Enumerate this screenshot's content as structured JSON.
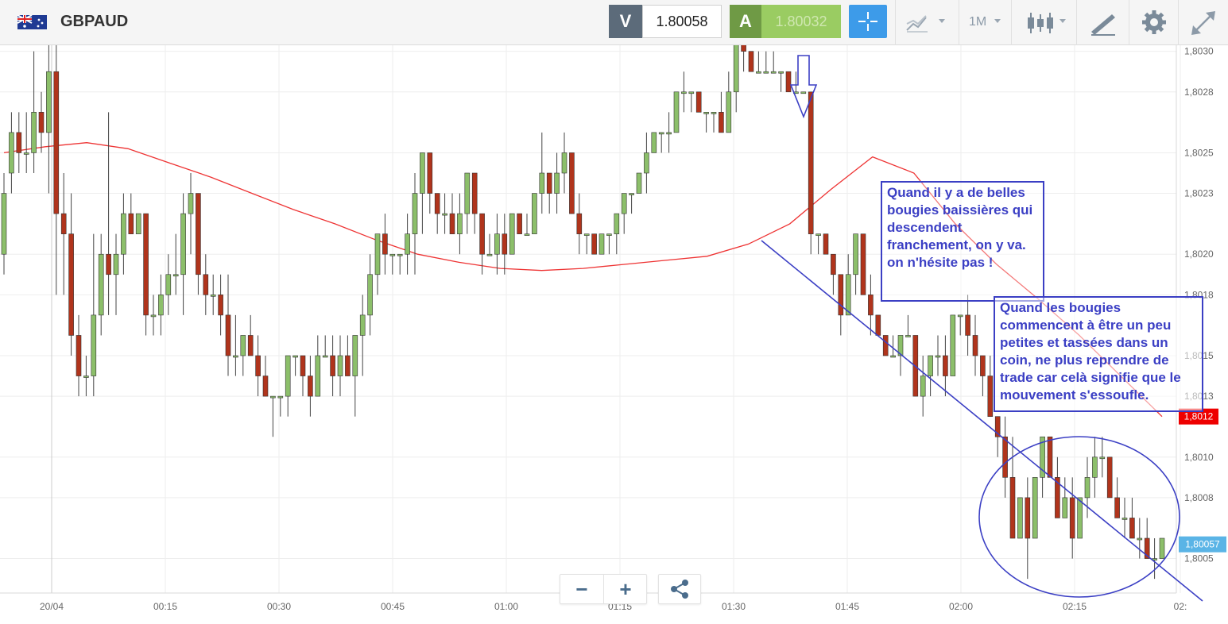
{
  "toolbar": {
    "symbol": "GBPAUD",
    "sell_label": "V",
    "sell_price": "1.80058",
    "buy_label": "A",
    "buy_price": "1.80032",
    "timeframe": "1M",
    "icons": [
      "uk-australia-flag-icon",
      "crosshair-icon",
      "chart-type-icon",
      "candles-icon",
      "draw-tool-icon",
      "gear-icon",
      "fullscreen-icon"
    ]
  },
  "annotations": {
    "box1": "Quand il y a de belles bougies baissières qui descendent franchement, on y va. on n'hésite pas !",
    "box2": "Quand les bougies commencent à être un peu petites et tassées dans un coin, ne plus reprendre de trade car celà signifie que le mouvement s'essoufle."
  },
  "zoom": {
    "minus": "−",
    "plus": "+"
  },
  "colors": {
    "up": "#8cbf6a",
    "down": "#b0341c",
    "ma": "#ee3333",
    "annotation": "#3b3fc4",
    "current_price": "#5ab4e6",
    "ma_price": "#ee0000"
  },
  "chart_data": {
    "type": "candlestick",
    "symbol": "GBPAUD",
    "y_ticks": [
      "1,8030",
      "1,8028",
      "1,8025",
      "1,8023",
      "1,8020",
      "1,8018",
      "1,8015",
      "1,8013",
      "1,8010",
      "1,8008",
      "1,8005"
    ],
    "x_ticks": [
      "20/04",
      "00:15",
      "00:30",
      "00:45",
      "01:00",
      "01:15",
      "01:30",
      "01:45",
      "02:00",
      "02:15",
      "02:"
    ],
    "ylim": [
      1.80033,
      1.80303
    ],
    "current_price_label": "1,80057",
    "ma_price_label": "1,8012",
    "ohlc": [
      [
        1.802,
        1.8024,
        1.8019,
        1.8023
      ],
      [
        1.8024,
        1.8027,
        1.8023,
        1.8026
      ],
      [
        1.8026,
        1.8027,
        1.8024,
        1.8025
      ],
      [
        1.8025,
        1.8027,
        1.8024,
        1.8025
      ],
      [
        1.8025,
        1.803,
        1.8024,
        1.8027
      ],
      [
        1.8027,
        1.8028,
        1.8025,
        1.8026
      ],
      [
        1.8026,
        1.8031,
        1.8023,
        1.8029
      ],
      [
        1.8029,
        1.8034,
        1.8018,
        1.8022
      ],
      [
        1.8022,
        1.8024,
        1.8018,
        1.8021
      ],
      [
        1.8021,
        1.8023,
        1.8015,
        1.8016
      ],
      [
        1.8016,
        1.8017,
        1.8013,
        1.8014
      ],
      [
        1.8014,
        1.8015,
        1.8013,
        1.8014
      ],
      [
        1.8014,
        1.8021,
        1.8013,
        1.8017
      ],
      [
        1.8017,
        1.8021,
        1.8016,
        1.802
      ],
      [
        1.802,
        1.8027,
        1.8017,
        1.8019
      ],
      [
        1.8019,
        1.8021,
        1.8017,
        1.802
      ],
      [
        1.802,
        1.8023,
        1.8019,
        1.8022
      ],
      [
        1.8022,
        1.8023,
        1.8021,
        1.8021
      ],
      [
        1.8021,
        1.8022,
        1.8021,
        1.8022
      ],
      [
        1.8022,
        1.8022,
        1.8016,
        1.8017
      ],
      [
        1.8017,
        1.8018,
        1.8016,
        1.8017
      ],
      [
        1.8017,
        1.8019,
        1.8016,
        1.8018
      ],
      [
        1.8018,
        1.802,
        1.8017,
        1.8019
      ],
      [
        1.8019,
        1.8021,
        1.8018,
        1.8019
      ],
      [
        1.8019,
        1.8023,
        1.8017,
        1.8022
      ],
      [
        1.8022,
        1.8024,
        1.802,
        1.8023
      ],
      [
        1.8023,
        1.8023,
        1.8018,
        1.8019
      ],
      [
        1.8019,
        1.802,
        1.8017,
        1.8018
      ],
      [
        1.8018,
        1.8019,
        1.8017,
        1.8018
      ],
      [
        1.8018,
        1.8019,
        1.8016,
        1.8017
      ],
      [
        1.8017,
        1.8019,
        1.8014,
        1.8015
      ],
      [
        1.8015,
        1.8017,
        1.8014,
        1.8015
      ],
      [
        1.8015,
        1.8016,
        1.8014,
        1.8016
      ],
      [
        1.8016,
        1.8017,
        1.8015,
        1.8015
      ],
      [
        1.8015,
        1.8016,
        1.8013,
        1.8014
      ],
      [
        1.8014,
        1.8015,
        1.8013,
        1.8013
      ],
      [
        1.8013,
        1.8013,
        1.8011,
        1.8013
      ],
      [
        1.8013,
        1.8013,
        1.8012,
        1.8013
      ],
      [
        1.8013,
        1.8015,
        1.8012,
        1.8015
      ],
      [
        1.8015,
        1.8015,
        1.8014,
        1.8015
      ],
      [
        1.8015,
        1.8015,
        1.8013,
        1.8014
      ],
      [
        1.8014,
        1.8015,
        1.8012,
        1.8013
      ],
      [
        1.8013,
        1.8016,
        1.8013,
        1.8015
      ],
      [
        1.8015,
        1.8016,
        1.8015,
        1.8015
      ],
      [
        1.8015,
        1.8016,
        1.8013,
        1.8014
      ],
      [
        1.8014,
        1.8016,
        1.8013,
        1.8015
      ],
      [
        1.8015,
        1.8016,
        1.8014,
        1.8014
      ],
      [
        1.8014,
        1.8016,
        1.8012,
        1.8016
      ],
      [
        1.8016,
        1.8018,
        1.8014,
        1.8017
      ],
      [
        1.8017,
        1.802,
        1.8016,
        1.8019
      ],
      [
        1.8019,
        1.8021,
        1.8018,
        1.8021
      ],
      [
        1.8021,
        1.8022,
        1.8019,
        1.802
      ],
      [
        1.802,
        1.802,
        1.8019,
        1.802
      ],
      [
        1.802,
        1.802,
        1.8019,
        1.802
      ],
      [
        1.802,
        1.8022,
        1.8019,
        1.8021
      ],
      [
        1.8021,
        1.8024,
        1.8019,
        1.8023
      ],
      [
        1.8023,
        1.8025,
        1.8021,
        1.8025
      ],
      [
        1.8025,
        1.8025,
        1.8022,
        1.8023
      ],
      [
        1.8023,
        1.8023,
        1.8021,
        1.8022
      ],
      [
        1.8022,
        1.8023,
        1.8021,
        1.8022
      ],
      [
        1.8022,
        1.8023,
        1.8021,
        1.8021
      ],
      [
        1.8021,
        1.8023,
        1.802,
        1.8022
      ],
      [
        1.8022,
        1.8024,
        1.8021,
        1.8024
      ],
      [
        1.8024,
        1.8024,
        1.8021,
        1.8022
      ],
      [
        1.8022,
        1.8022,
        1.8019,
        1.802
      ],
      [
        1.802,
        1.8021,
        1.802,
        1.802
      ],
      [
        1.802,
        1.8022,
        1.8019,
        1.8021
      ],
      [
        1.8021,
        1.8022,
        1.8019,
        1.802
      ],
      [
        1.802,
        1.8022,
        1.802,
        1.8022
      ],
      [
        1.8022,
        1.8022,
        1.8021,
        1.8021
      ],
      [
        1.8021,
        1.8022,
        1.8021,
        1.8021
      ],
      [
        1.8021,
        1.8023,
        1.8021,
        1.8023
      ],
      [
        1.8023,
        1.8026,
        1.8022,
        1.8024
      ],
      [
        1.8024,
        1.8024,
        1.8022,
        1.8023
      ],
      [
        1.8023,
        1.8025,
        1.8022,
        1.8024
      ],
      [
        1.8024,
        1.8026,
        1.8023,
        1.8025
      ],
      [
        1.8025,
        1.8025,
        1.8022,
        1.8022
      ],
      [
        1.8022,
        1.8023,
        1.802,
        1.8021
      ],
      [
        1.8021,
        1.8021,
        1.802,
        1.8021
      ],
      [
        1.8021,
        1.8021,
        1.802,
        1.802
      ],
      [
        1.802,
        1.8021,
        1.802,
        1.8021
      ],
      [
        1.8021,
        1.8021,
        1.802,
        1.8021
      ],
      [
        1.8021,
        1.8022,
        1.802,
        1.8022
      ],
      [
        1.8022,
        1.8023,
        1.8021,
        1.8023
      ],
      [
        1.8023,
        1.8023,
        1.8022,
        1.8023
      ],
      [
        1.8023,
        1.8024,
        1.8023,
        1.8024
      ],
      [
        1.8024,
        1.8026,
        1.8023,
        1.8025
      ],
      [
        1.8025,
        1.8026,
        1.8025,
        1.8026
      ],
      [
        1.8026,
        1.8026,
        1.8025,
        1.8026
      ],
      [
        1.8026,
        1.8027,
        1.8025,
        1.8026
      ],
      [
        1.8026,
        1.8028,
        1.8026,
        1.8028
      ],
      [
        1.8028,
        1.8029,
        1.8027,
        1.8028
      ],
      [
        1.8028,
        1.8028,
        1.8027,
        1.8028
      ],
      [
        1.8028,
        1.8028,
        1.8027,
        1.8027
      ],
      [
        1.8027,
        1.8027,
        1.8026,
        1.8027
      ],
      [
        1.8027,
        1.8027,
        1.8026,
        1.8027
      ],
      [
        1.8027,
        1.8028,
        1.8026,
        1.8026
      ],
      [
        1.8026,
        1.8029,
        1.8026,
        1.8028
      ],
      [
        1.8028,
        1.8031,
        1.8027,
        1.8031
      ],
      [
        1.8031,
        1.8031,
        1.8029,
        1.803
      ],
      [
        1.803,
        1.803,
        1.8029,
        1.8029
      ],
      [
        1.8029,
        1.803,
        1.8029,
        1.8029
      ],
      [
        1.8029,
        1.803,
        1.8029,
        1.8029
      ],
      [
        1.8029,
        1.803,
        1.8029,
        1.8029
      ],
      [
        1.8029,
        1.8029,
        1.8028,
        1.8029
      ],
      [
        1.8029,
        1.8029,
        1.8028,
        1.8028
      ],
      [
        1.8028,
        1.8029,
        1.8028,
        1.8028
      ],
      [
        1.8028,
        1.8028,
        1.8028,
        1.8028
      ],
      [
        1.8028,
        1.8028,
        1.802,
        1.8021
      ],
      [
        1.8021,
        1.8021,
        1.802,
        1.8021
      ],
      [
        1.8021,
        1.8021,
        1.802,
        1.802
      ],
      [
        1.802,
        1.802,
        1.8018,
        1.8019
      ],
      [
        1.8019,
        1.8019,
        1.8016,
        1.8017
      ],
      [
        1.8017,
        1.802,
        1.8017,
        1.8019
      ],
      [
        1.8019,
        1.8021,
        1.8018,
        1.8021
      ],
      [
        1.8021,
        1.8021,
        1.8018,
        1.8018
      ],
      [
        1.8018,
        1.8019,
        1.8016,
        1.8017
      ],
      [
        1.8017,
        1.8017,
        1.8016,
        1.8016
      ],
      [
        1.8016,
        1.8016,
        1.8015,
        1.8015
      ],
      [
        1.8015,
        1.8016,
        1.8015,
        1.8015
      ],
      [
        1.8015,
        1.8016,
        1.8014,
        1.8016
      ],
      [
        1.8016,
        1.8017,
        1.8016,
        1.8016
      ],
      [
        1.8016,
        1.8016,
        1.8013,
        1.8013
      ],
      [
        1.8013,
        1.8015,
        1.8012,
        1.8014
      ],
      [
        1.8014,
        1.8015,
        1.8013,
        1.8015
      ],
      [
        1.8015,
        1.8016,
        1.8014,
        1.8015
      ],
      [
        1.8015,
        1.8016,
        1.8013,
        1.8014
      ],
      [
        1.8014,
        1.8017,
        1.8014,
        1.8017
      ],
      [
        1.8017,
        1.8017,
        1.8016,
        1.8017
      ],
      [
        1.8017,
        1.8018,
        1.8015,
        1.8016
      ],
      [
        1.8016,
        1.8017,
        1.8014,
        1.8015
      ],
      [
        1.8015,
        1.8015,
        1.8013,
        1.8014
      ],
      [
        1.8014,
        1.8015,
        1.8012,
        1.8012
      ],
      [
        1.8012,
        1.8012,
        1.801,
        1.8011
      ],
      [
        1.8011,
        1.8012,
        1.8008,
        1.8009
      ],
      [
        1.8009,
        1.8011,
        1.8006,
        1.8006
      ],
      [
        1.8006,
        1.8008,
        1.8006,
        1.8008
      ],
      [
        1.8008,
        1.8009,
        1.8004,
        1.8006
      ],
      [
        1.8006,
        1.8009,
        1.8006,
        1.8009
      ],
      [
        1.8009,
        1.8011,
        1.8008,
        1.8011
      ],
      [
        1.8011,
        1.8011,
        1.8009,
        1.8009
      ],
      [
        1.8009,
        1.801,
        1.8007,
        1.8007
      ],
      [
        1.8007,
        1.8009,
        1.8007,
        1.8008
      ],
      [
        1.8008,
        1.8009,
        1.8005,
        1.8006
      ],
      [
        1.8006,
        1.8008,
        1.8006,
        1.8008
      ],
      [
        1.8008,
        1.801,
        1.8007,
        1.8009
      ],
      [
        1.8009,
        1.8011,
        1.8008,
        1.801
      ],
      [
        1.801,
        1.8011,
        1.8009,
        1.801
      ],
      [
        1.801,
        1.801,
        1.8008,
        1.8008
      ],
      [
        1.8008,
        1.8009,
        1.8007,
        1.8007
      ],
      [
        1.8007,
        1.8008,
        1.8006,
        1.8007
      ],
      [
        1.8007,
        1.8008,
        1.8006,
        1.8006
      ],
      [
        1.8006,
        1.8007,
        1.8005,
        1.8006
      ],
      [
        1.8006,
        1.8007,
        1.8005,
        1.8005
      ],
      [
        1.8005,
        1.8006,
        1.8004,
        1.8005
      ],
      [
        1.8005,
        1.8006,
        1.8005,
        1.8006
      ]
    ],
    "moving_average": [
      1.8025,
      1.80253,
      1.80255,
      1.80252,
      1.80245,
      1.80238,
      1.8023,
      1.80222,
      1.80215,
      1.80207,
      1.802,
      1.80196,
      1.80193,
      1.80192,
      1.80193,
      1.80195,
      1.80197,
      1.80199,
      1.80205,
      1.80215,
      1.80232,
      1.80248,
      1.8024,
      1.80215,
      1.80195,
      1.80178,
      1.8016,
      1.8014,
      1.8012
    ]
  }
}
